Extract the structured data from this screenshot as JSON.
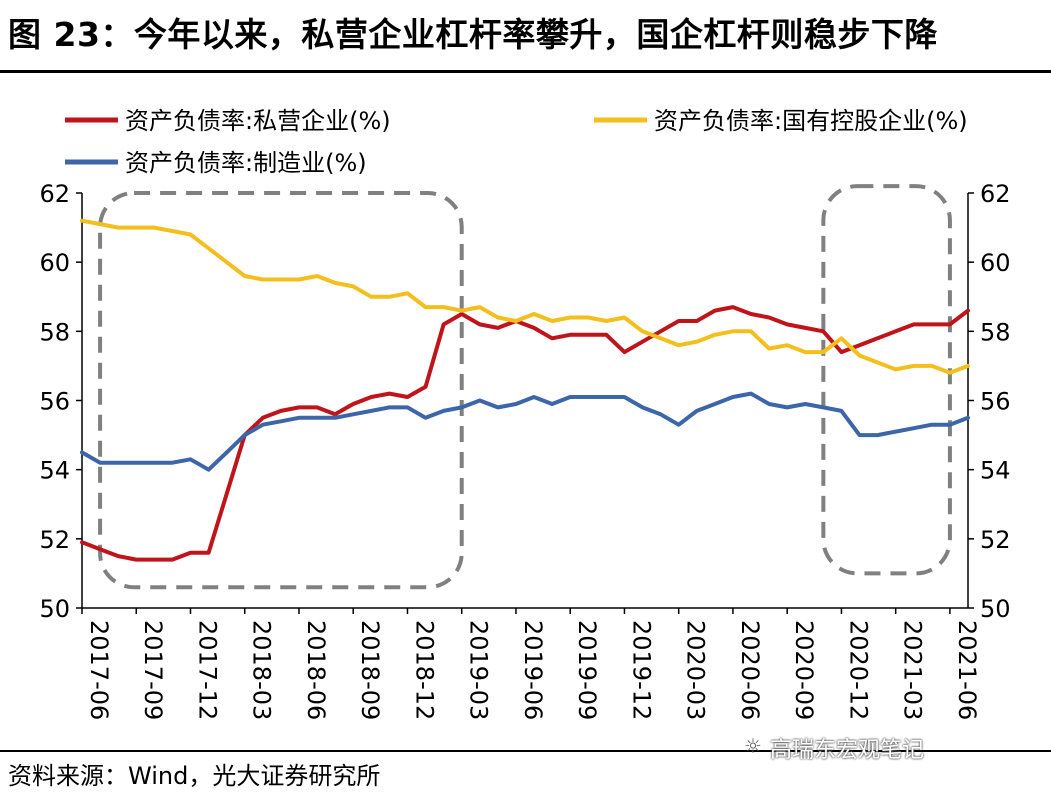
{
  "title": "图 23：今年以来，私营企业杠杆率攀升，国企杠杆则稳步下降",
  "source": "资料来源：Wind，光大证券研究所",
  "watermark": "高瑞东宏观笔记",
  "colors": {
    "private": "#c0141b",
    "soe": "#f2bf1c",
    "mfg": "#3d66a8",
    "box": "#808080"
  },
  "chart_data": {
    "type": "line",
    "ylim": [
      50,
      62
    ],
    "yticks": [
      "50",
      "52",
      "54",
      "56",
      "58",
      "60",
      "62"
    ],
    "xticks": [
      "2017-06",
      "2017-09",
      "2017-12",
      "2018-03",
      "2018-06",
      "2018-09",
      "2018-12",
      "2019-03",
      "2019-06",
      "2019-09",
      "2019-12",
      "2020-03",
      "2020-06",
      "2020-09",
      "2020-12",
      "2021-03",
      "2021-06"
    ],
    "legend": [
      "资产负债率:私营企业(%)",
      "资产负债率:国有控股企业(%)",
      "资产负债率:制造业(%)"
    ],
    "grid": false,
    "series": [
      {
        "name": "资产负债率:私营企业(%)",
        "values": [
          51.9,
          51.7,
          51.5,
          51.4,
          51.4,
          51.4,
          51.6,
          51.6,
          53.3,
          55.0,
          55.5,
          55.7,
          55.8,
          55.8,
          55.6,
          55.9,
          56.1,
          56.2,
          56.1,
          56.4,
          58.2,
          58.5,
          58.2,
          58.1,
          58.3,
          58.1,
          57.8,
          57.9,
          57.9,
          57.9,
          57.4,
          57.7,
          58.0,
          58.3,
          58.3,
          58.6,
          58.7,
          58.5,
          58.4,
          58.2,
          58.1,
          58.0,
          57.4,
          57.6,
          57.8,
          58.0,
          58.2,
          58.2,
          58.2,
          58.6
        ]
      },
      {
        "name": "资产负债率:国有控股企业(%)",
        "values": [
          61.2,
          61.1,
          61.0,
          61.0,
          61.0,
          60.9,
          60.8,
          60.4,
          60.0,
          59.6,
          59.5,
          59.5,
          59.5,
          59.6,
          59.4,
          59.3,
          59.0,
          59.0,
          59.1,
          58.7,
          58.7,
          58.6,
          58.7,
          58.4,
          58.3,
          58.5,
          58.3,
          58.4,
          58.4,
          58.3,
          58.4,
          58.0,
          57.8,
          57.6,
          57.7,
          57.9,
          58.0,
          58.0,
          57.5,
          57.6,
          57.4,
          57.4,
          57.8,
          57.3,
          57.1,
          56.9,
          57.0,
          57.0,
          56.8,
          57.0
        ]
      },
      {
        "name": "资产负债率:制造业(%)",
        "values": [
          54.5,
          54.2,
          54.2,
          54.2,
          54.2,
          54.2,
          54.3,
          54.0,
          54.5,
          55.0,
          55.3,
          55.4,
          55.5,
          55.5,
          55.5,
          55.6,
          55.7,
          55.8,
          55.8,
          55.5,
          55.7,
          55.8,
          56.0,
          55.8,
          55.9,
          56.1,
          55.9,
          56.1,
          56.1,
          56.1,
          56.1,
          55.8,
          55.6,
          55.3,
          55.7,
          55.9,
          56.1,
          56.2,
          55.9,
          55.8,
          55.9,
          55.8,
          55.7,
          55.0,
          55.0,
          55.1,
          55.2,
          55.3,
          55.3,
          55.5
        ]
      }
    ],
    "highlight_boxes": [
      {
        "x_start": "2017-07",
        "x_end": "2019-03",
        "y_low": 50.6,
        "y_high": 62.0
      },
      {
        "x_start": "2020-11",
        "x_end": "2021-06",
        "y_low": 51.0,
        "y_high": 62.2
      }
    ]
  }
}
